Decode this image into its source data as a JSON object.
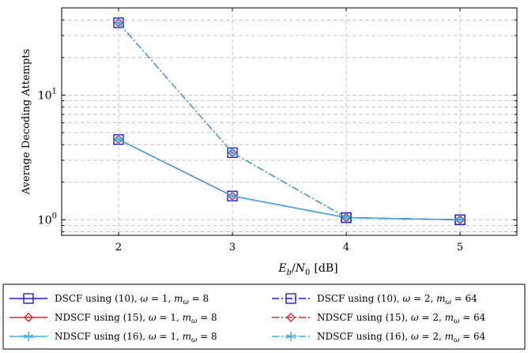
{
  "chart_data": {
    "type": "line",
    "xlabel": "E_b/N_0 [dB]",
    "xlabel_parts": {
      "e": "E",
      "b": "b",
      "slash": "/",
      "n": "N",
      "zero": "0",
      "unit": "[dB]"
    },
    "ylabel": "Average Decoding Attempts",
    "x": [
      2,
      3,
      4,
      5
    ],
    "xlim": [
      1.5,
      5.5
    ],
    "ylim": [
      0.75,
      50
    ],
    "yscale": "log",
    "grid": true,
    "xticks": [
      "2",
      "3",
      "4",
      "5"
    ],
    "yticks": [
      {
        "value": 1,
        "base": "10",
        "exp": "0"
      },
      {
        "value": 10,
        "base": "10",
        "exp": "1"
      }
    ],
    "legend_position": "below",
    "series": [
      {
        "name": "DSCF using (10), ω = 1, m_ω = 8",
        "values": [
          4.4,
          1.55,
          1.04,
          1.0
        ],
        "color": "#1f1fcf",
        "dash": "solid",
        "marker": "square"
      },
      {
        "name": "NDSCF using (15), ω = 1, m_ω = 8",
        "values": [
          4.4,
          1.55,
          1.04,
          1.0
        ],
        "color": "#e8202a",
        "dash": "solid",
        "marker": "diamond"
      },
      {
        "name": "NDSCF using (16), ω = 1, m_ω = 8",
        "values": [
          4.4,
          1.55,
          1.04,
          1.0
        ],
        "color": "#3aaee8",
        "dash": "solid",
        "marker": "star"
      },
      {
        "name": "DSCF using (10), ω = 2, m_ω = 64",
        "values": [
          38,
          3.45,
          1.04,
          1.0
        ],
        "color": "#1f1fcf",
        "dash": "dashdot",
        "marker": "square"
      },
      {
        "name": "NDSCF using (15), ω = 2, m_ω = 64",
        "values": [
          38,
          3.45,
          1.04,
          1.0
        ],
        "color": "#e8202a",
        "dash": "dashdot",
        "marker": "diamond"
      },
      {
        "name": "NDSCF using (16), ω = 2, m_ω = 64",
        "values": [
          38,
          3.45,
          1.04,
          1.0
        ],
        "color": "#3aaee8",
        "dash": "dashdot",
        "marker": "star"
      }
    ]
  },
  "legend": {
    "items": [
      {
        "prefix": "DSCF using (10), ",
        "omega": "1",
        "m": "8"
      },
      {
        "prefix": "NDSCF using (15), ",
        "omega": "1",
        "m": "8"
      },
      {
        "prefix": "NDSCF using (16), ",
        "omega": "1",
        "m": "8"
      },
      {
        "prefix": "DSCF using (10), ",
        "omega": "2",
        "m": "64"
      },
      {
        "prefix": "NDSCF using (15), ",
        "omega": "2",
        "m": "64"
      },
      {
        "prefix": "NDSCF using (16), ",
        "omega": "2",
        "m": "64"
      }
    ],
    "symbols": {
      "omega": "ω",
      "m": "m",
      "eq": " = ",
      "comma": ", "
    }
  }
}
